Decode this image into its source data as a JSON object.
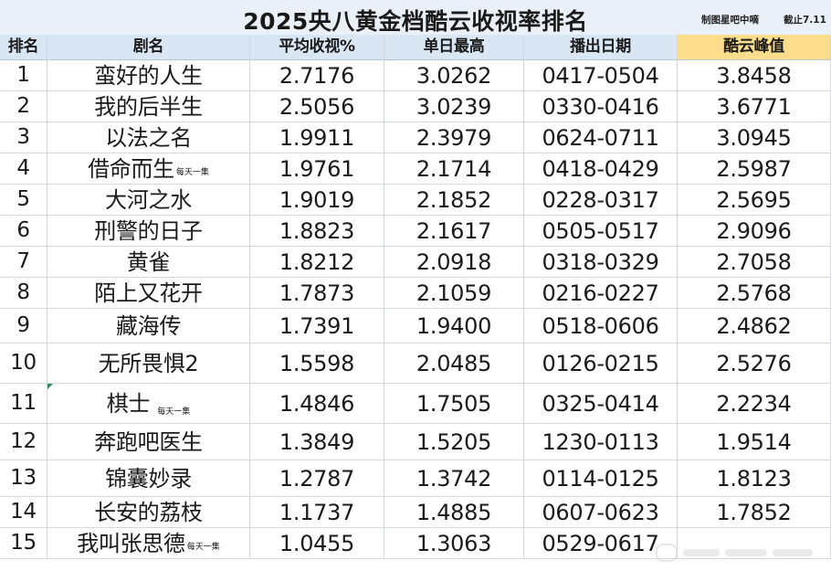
{
  "title": "2025央八黄金档酷云收视率排名",
  "credit_maker": "制图星吧中嘀",
  "credit_cutoff": "截止7.11",
  "columns": {
    "rank": "排名",
    "name": "剧名",
    "avg": "平均收视%",
    "daily_max": "单日最高",
    "air_dates": "播出日期",
    "peak": "酷云峰值"
  },
  "accent_colors": {
    "header_bg": "#d9e6f3",
    "peak_header_bg": "#fbdd8c",
    "title_bar_bg": "#e9f0f8"
  },
  "rows": [
    {
      "rank": "1",
      "name": "蛮好的人生",
      "note": "",
      "avg": "2.7176",
      "daily_max": "3.0262",
      "air_dates": "0417-0504",
      "peak": "3.8458"
    },
    {
      "rank": "2",
      "name": "我的后半生",
      "note": "",
      "avg": "2.5056",
      "daily_max": "3.0239",
      "air_dates": "0330-0416",
      "peak": "3.6771"
    },
    {
      "rank": "3",
      "name": "以法之名",
      "note": "",
      "avg": "1.9911",
      "daily_max": "2.3979",
      "air_dates": "0624-0711",
      "peak": "3.0945"
    },
    {
      "rank": "4",
      "name": "借命而生",
      "note": "每天一集",
      "avg": "1.9761",
      "daily_max": "2.1714",
      "air_dates": "0418-0429",
      "peak": "2.5987"
    },
    {
      "rank": "5",
      "name": "大河之水",
      "note": "",
      "avg": "1.9019",
      "daily_max": "2.1852",
      "air_dates": "0228-0317",
      "peak": "2.5695"
    },
    {
      "rank": "6",
      "name": "刑警的日子",
      "note": "",
      "avg": "1.8823",
      "daily_max": "2.1617",
      "air_dates": "0505-0517",
      "peak": "2.9096"
    },
    {
      "rank": "7",
      "name": "黄雀",
      "note": "",
      "avg": "1.8212",
      "daily_max": "2.0918",
      "air_dates": "0318-0329",
      "peak": "2.7058"
    },
    {
      "rank": "8",
      "name": "陌上又花开",
      "note": "",
      "avg": "1.7873",
      "daily_max": "2.1059",
      "air_dates": "0216-0227",
      "peak": "2.5768"
    },
    {
      "rank": "9",
      "name": "藏海传",
      "note": "",
      "avg": "1.7391",
      "daily_max": "1.9400",
      "air_dates": "0518-0606",
      "peak": "2.4862"
    },
    {
      "rank": "10",
      "name": "无所畏惧2",
      "note": "",
      "avg": "1.5598",
      "daily_max": "2.0485",
      "air_dates": "0126-0215",
      "peak": "2.5276"
    },
    {
      "rank": "11",
      "name": "棋士",
      "note": "每天一集",
      "avg": "1.4846",
      "daily_max": "1.7505",
      "air_dates": "0325-0414",
      "peak": "2.2234"
    },
    {
      "rank": "12",
      "name": "奔跑吧医生",
      "note": "",
      "avg": "1.3849",
      "daily_max": "1.5205",
      "air_dates": "1230-0113",
      "peak": "1.9514"
    },
    {
      "rank": "13",
      "name": "锦囊妙录",
      "note": "",
      "avg": "1.2787",
      "daily_max": "1.3742",
      "air_dates": "0114-0125",
      "peak": "1.8123"
    },
    {
      "rank": "14",
      "name": "长安的荔枝",
      "note": "",
      "avg": "1.1737",
      "daily_max": "1.4885",
      "air_dates": "0607-0623",
      "peak": "1.7852"
    },
    {
      "rank": "15",
      "name": "我叫张思德",
      "note": "每天一集",
      "avg": "1.0455",
      "daily_max": "1.3063",
      "air_dates": "0529-0617",
      "peak": ""
    }
  ]
}
